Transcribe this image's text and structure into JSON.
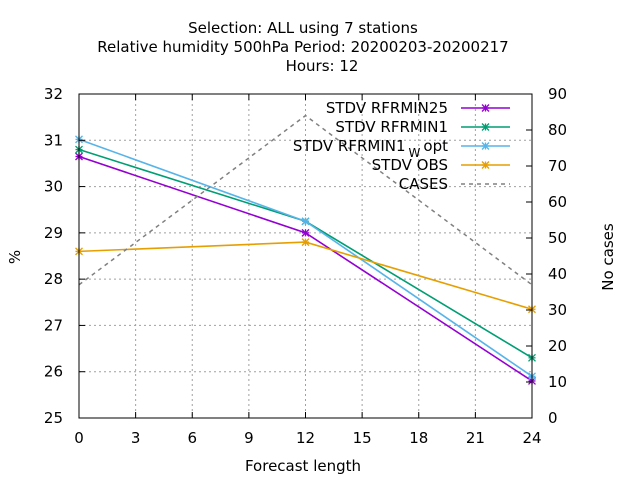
{
  "chart_data": {
    "type": "line",
    "title_lines": [
      "Selection: ALL using     7 stations",
      "Relative humidity 500hPa   Period: 20200203-20200217",
      "Hours:  12"
    ],
    "xlabel": "Forecast length",
    "ylabel": "%",
    "y2label": "No cases",
    "xlim": [
      0,
      24
    ],
    "ylim": [
      25,
      32
    ],
    "y2lim": [
      0,
      90
    ],
    "xticks": [
      "0",
      "3",
      "6",
      "9",
      "12",
      "15",
      "18",
      "21",
      "24"
    ],
    "yticks": [
      "25",
      "26",
      "27",
      "28",
      "29",
      "30",
      "31",
      "32"
    ],
    "y2ticks": [
      "0",
      "10",
      "20",
      "30",
      "40",
      "50",
      "60",
      "70",
      "80",
      "90"
    ],
    "grid": true,
    "legend_position": "top-right",
    "x": [
      0,
      12,
      24
    ],
    "series": [
      {
        "name": "STDV RFRMIN25",
        "axis": "y",
        "color": "#9400d3",
        "marker": "x",
        "values": [
          30.65,
          29.0,
          25.8
        ]
      },
      {
        "name": "STDV RFRMIN1",
        "axis": "y",
        "color": "#009e73",
        "marker": "x",
        "values": [
          30.8,
          29.25,
          26.3
        ]
      },
      {
        "name_parts": [
          "STDV RFRMIN1",
          "W",
          "opt"
        ],
        "axis": "y",
        "color": "#56b4e9",
        "marker": "x",
        "values": [
          31.02,
          29.25,
          25.9
        ]
      },
      {
        "name": "STDV OBS",
        "axis": "y",
        "color": "#e69f00",
        "marker": "x",
        "values": [
          28.6,
          28.8,
          27.35
        ]
      },
      {
        "name": "CASES",
        "axis": "y2",
        "color": "#808080",
        "marker": "none",
        "dashed": true,
        "values": [
          37,
          84,
          37
        ]
      }
    ]
  }
}
